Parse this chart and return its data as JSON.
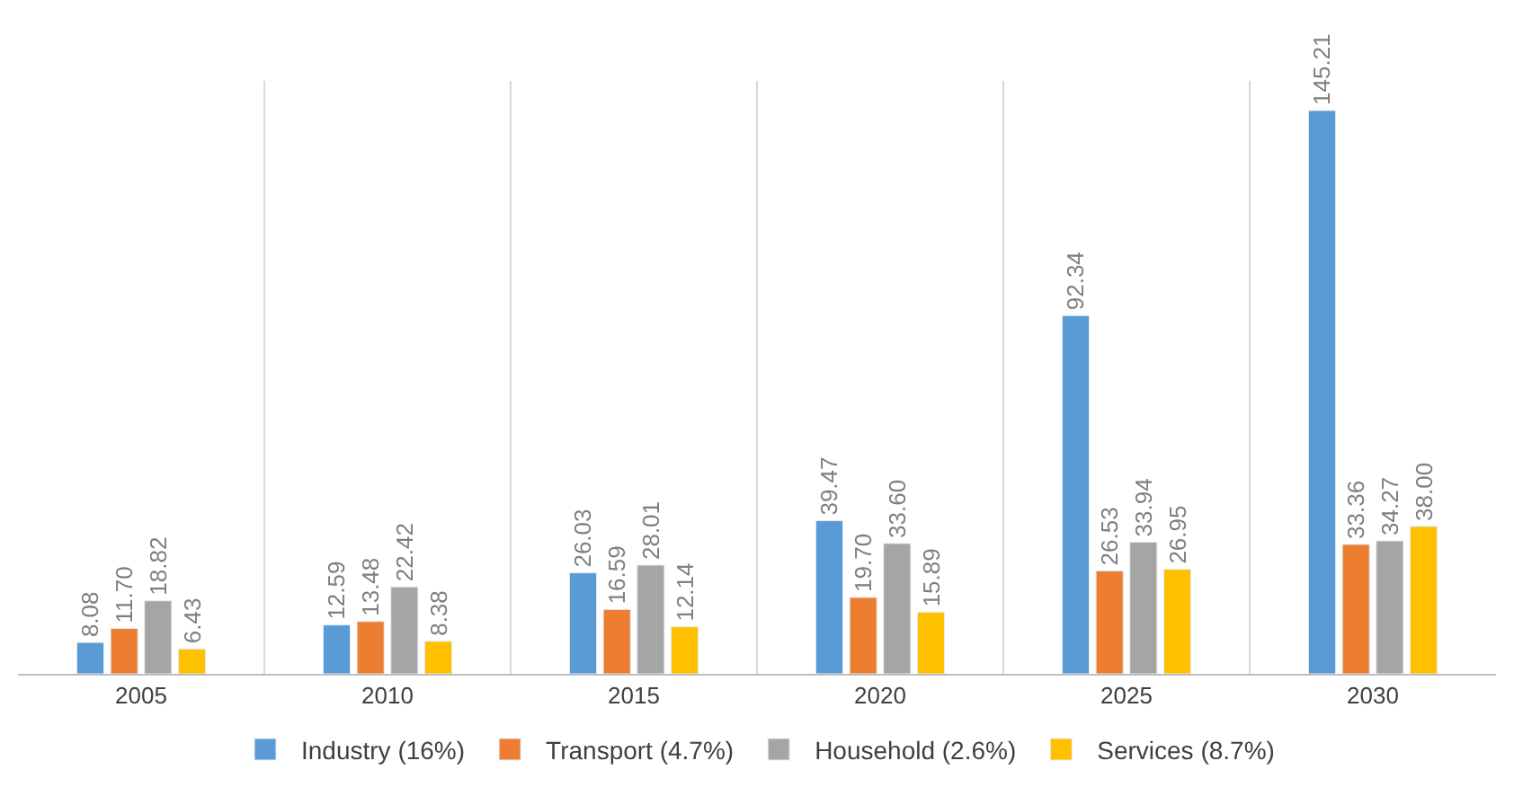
{
  "chart_data": {
    "type": "bar",
    "categories": [
      "2005",
      "2010",
      "2015",
      "2020",
      "2025",
      "2030"
    ],
    "series": [
      {
        "name": "Industry (16%)",
        "color": "#5b9bd5",
        "values": [
          8.08,
          12.59,
          26.03,
          39.47,
          92.34,
          145.21
        ],
        "value_labels": [
          "8.08",
          "12.59",
          "26.03",
          "39.47",
          "92.34",
          "145.21"
        ]
      },
      {
        "name": "Transport (4.7%)",
        "color": "#ed7d31",
        "values": [
          11.7,
          13.48,
          16.59,
          19.7,
          26.53,
          33.36
        ],
        "value_labels": [
          "11.70",
          "13.48",
          "16.59",
          "19.70",
          "26.53",
          "33.36"
        ]
      },
      {
        "name": "Household (2.6%)",
        "color": "#a5a5a5",
        "values": [
          18.82,
          22.42,
          28.01,
          33.6,
          33.94,
          34.27
        ],
        "value_labels": [
          "18.82",
          "22.42",
          "28.01",
          "33.60",
          "33.94",
          "34.27"
        ]
      },
      {
        "name": "Services (8.7%)",
        "color": "#ffc000",
        "values": [
          6.43,
          8.38,
          12.14,
          15.89,
          26.95,
          38.0
        ],
        "value_labels": [
          "6.43",
          "8.38",
          "12.14",
          "15.89",
          "26.95",
          "38.00"
        ]
      }
    ],
    "grid": "x",
    "legend": "bottom",
    "tick_labels": "x"
  }
}
